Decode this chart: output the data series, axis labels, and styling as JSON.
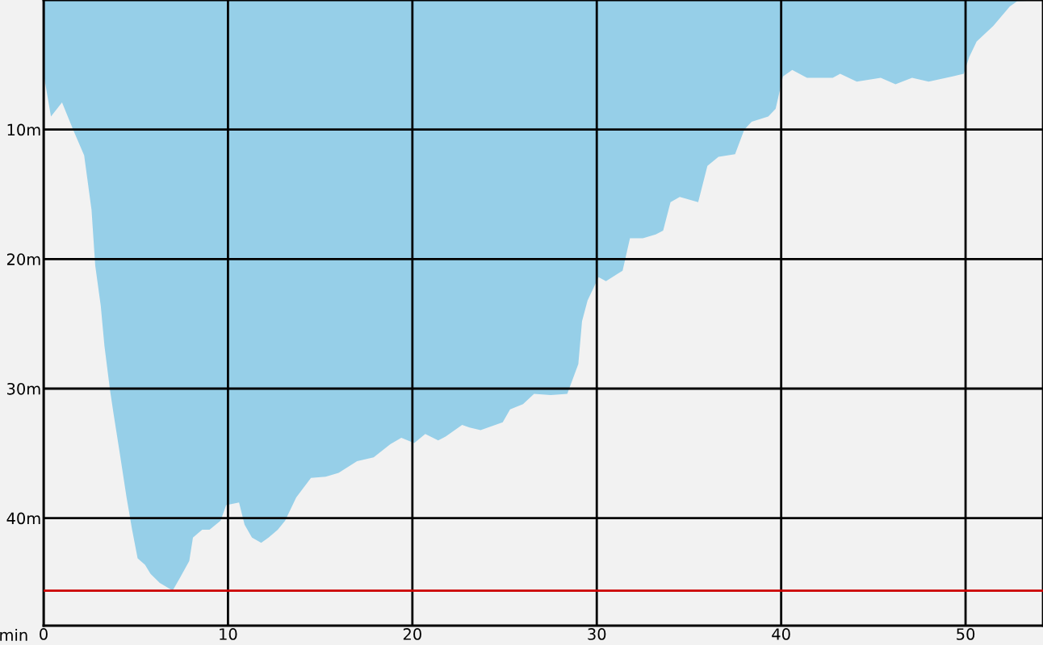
{
  "chart_data": {
    "type": "area",
    "xlabel": "min",
    "x": [
      0,
      0.4,
      1.0,
      1.6,
      2.2,
      2.6,
      2.8,
      3.1,
      3.3,
      3.6,
      3.8,
      4.1,
      4.5,
      4.8,
      5.1,
      5.5,
      5.8,
      6.3,
      7.0,
      7.4,
      7.9,
      8.1,
      8.6,
      9.0,
      9.6,
      9.9,
      10.6,
      10.9,
      11.3,
      11.8,
      12.2,
      12.7,
      13.1,
      13.7,
      14.5,
      15.3,
      16.0,
      17.0,
      17.9,
      18.8,
      19.4,
      20.1,
      20.7,
      21.4,
      21.8,
      22.7,
      23.1,
      23.7,
      24.9,
      25.3,
      26.0,
      26.6,
      27.5,
      28.4,
      29.0,
      29.2,
      29.5,
      30.1,
      30.5,
      31.4,
      31.8,
      32.5,
      33.2,
      33.6,
      34.0,
      34.5,
      35.5,
      36.0,
      36.6,
      37.5,
      38.0,
      38.4,
      39.3,
      39.7,
      40.1,
      40.6,
      41.4,
      42.8,
      43.2,
      44.1,
      45.4,
      46.2,
      47.1,
      48.0,
      49.3,
      49.9,
      50.2,
      50.6,
      51.5,
      52.4,
      52.8,
      54.2
    ],
    "series": [
      {
        "color": "#96cfe8",
        "values": [
          5.7,
          9.0,
          7.9,
          10.0,
          12.0,
          16.2,
          20.5,
          23.6,
          26.7,
          30.1,
          32.0,
          34.7,
          38.4,
          40.9,
          43.1,
          43.6,
          44.3,
          45.0,
          45.6,
          44.6,
          43.3,
          41.5,
          40.9,
          40.9,
          40.2,
          39.0,
          38.8,
          40.5,
          41.5,
          41.9,
          41.5,
          40.9,
          40.2,
          38.4,
          36.9,
          36.8,
          36.5,
          35.6,
          35.3,
          34.3,
          33.8,
          34.2,
          33.5,
          34.0,
          33.7,
          32.8,
          33.0,
          33.2,
          32.6,
          31.6,
          31.2,
          30.4,
          30.5,
          30.4,
          28.1,
          24.8,
          23.2,
          21.4,
          21.7,
          20.9,
          18.4,
          18.4,
          18.1,
          17.8,
          15.6,
          15.2,
          15.6,
          12.8,
          12.1,
          11.9,
          10.0,
          9.4,
          9.0,
          8.4,
          5.9,
          5.4,
          6.0,
          6.0,
          5.7,
          6.3,
          6.0,
          6.5,
          6.0,
          6.3,
          5.9,
          5.7,
          4.4,
          3.2,
          2.0,
          0.5,
          0.1,
          0
        ]
      }
    ],
    "xlim": [
      0,
      54.2
    ],
    "ylim": [
      48.3,
      0
    ],
    "xticks": [
      0,
      10,
      20,
      30,
      40,
      50
    ],
    "yticks": [
      {
        "value": 10,
        "label": "10m"
      },
      {
        "value": 20,
        "label": "20m"
      },
      {
        "value": 30,
        "label": "30m"
      },
      {
        "value": 40,
        "label": "40m"
      }
    ],
    "ref_lines": [
      {
        "axis": "y",
        "value": 45.6,
        "color": "#cc0000",
        "line_style": "solid"
      }
    ],
    "grid": true
  }
}
